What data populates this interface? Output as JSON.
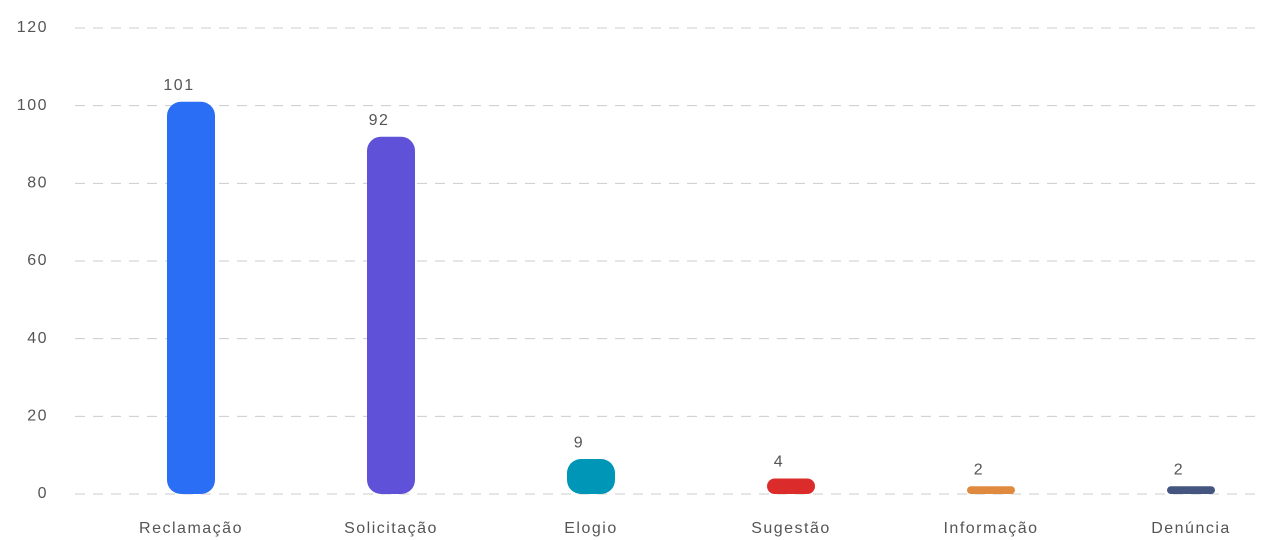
{
  "chart_data": {
    "type": "bar",
    "categories": [
      "Reclamação",
      "Solicitação",
      "Elogio",
      "Sugestão",
      "Informação",
      "Denúncia"
    ],
    "values": [
      101,
      92,
      9,
      4,
      2,
      2
    ],
    "colors": [
      "#2a6ef5",
      "#5f52d9",
      "#0096b8",
      "#dc2b2b",
      "#e08a40",
      "#44557f"
    ],
    "ylim": [
      0,
      120
    ],
    "yticks": [
      0,
      20,
      40,
      60,
      80,
      100,
      120
    ],
    "grid": true
  }
}
